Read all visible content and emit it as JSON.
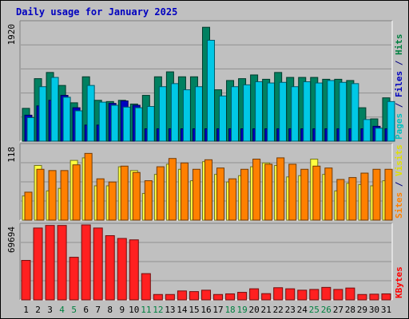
{
  "title": "Daily usage for January 2025",
  "chart_data": [
    {
      "type": "bar",
      "panel": "hits-files-pages",
      "ymax_label": "1920",
      "ymax": 1920,
      "side_label": [
        {
          "text": "Pages",
          "color": "#00c0c0"
        },
        {
          "text": " / ",
          "color": "#000080"
        },
        {
          "text": "Files",
          "color": "#0000c0"
        },
        {
          "text": " / ",
          "color": "#000080"
        },
        {
          "text": "Hits",
          "color": "#008040"
        }
      ],
      "categories": [
        "1",
        "2",
        "3",
        "4",
        "5",
        "6",
        "7",
        "8",
        "9",
        "10",
        "11",
        "12",
        "13",
        "14",
        "15",
        "16",
        "17",
        "18",
        "19",
        "20",
        "21",
        "22",
        "23",
        "24",
        "25",
        "26",
        "27",
        "28",
        "29",
        "30",
        "31"
      ],
      "weekend_days": [
        4,
        5,
        11,
        12,
        18,
        19,
        25,
        26
      ],
      "series": [
        {
          "name": "Hits",
          "color": "#008060",
          "values": [
            530,
            1010,
            1110,
            900,
            620,
            1040,
            660,
            640,
            660,
            600,
            740,
            1040,
            1120,
            1040,
            1040,
            1840,
            830,
            980,
            1010,
            1070,
            1000,
            1110,
            1030,
            1030,
            1030,
            1000,
            1000,
            980,
            540,
            360,
            700
          ]
        },
        {
          "name": "Files",
          "color": "#0000c0",
          "values": [
            420,
            570,
            660,
            740,
            540,
            260,
            260,
            610,
            650,
            580,
            200,
            200,
            200,
            200,
            200,
            200,
            200,
            200,
            200,
            200,
            200,
            200,
            200,
            200,
            200,
            200,
            200,
            200,
            200,
            240,
            200
          ]
        },
        {
          "name": "Pages",
          "color": "#00c8e6",
          "values": [
            380,
            880,
            1030,
            710,
            490,
            900,
            630,
            580,
            550,
            540,
            560,
            880,
            930,
            830,
            880,
            1630,
            730,
            880,
            910,
            960,
            940,
            950,
            880,
            960,
            940,
            980,
            950,
            930,
            350,
            210,
            640
          ]
        }
      ]
    },
    {
      "type": "bar",
      "panel": "visits-sites",
      "ymax_label": "118",
      "ymax": 118,
      "side_label": [
        {
          "text": "Sites",
          "color": "#ff8000"
        },
        {
          "text": " / ",
          "color": "#000080"
        },
        {
          "text": "Visits",
          "color": "#e0e000"
        }
      ],
      "series": [
        {
          "name": "Visits",
          "color": "#ffff40",
          "values": [
            38,
            86,
            46,
            50,
            94,
            98,
            54,
            54,
            84,
            78,
            42,
            72,
            88,
            80,
            62,
            92,
            72,
            60,
            70,
            84,
            90,
            86,
            68,
            70,
            96,
            72,
            46,
            58,
            56,
            54,
            62
          ]
        },
        {
          "name": "Sites",
          "color": "#ff8000",
          "values": [
            44,
            80,
            78,
            78,
            87,
            105,
            65,
            60,
            85,
            75,
            62,
            84,
            97,
            90,
            80,
            95,
            82,
            65,
            80,
            96,
            88,
            98,
            88,
            80,
            85,
            82,
            64,
            67,
            74,
            80,
            80
          ]
        }
      ]
    },
    {
      "type": "bar",
      "panel": "kbytes",
      "ymax_label": "69694",
      "ymax": 69694,
      "side_label": [
        {
          "text": "KBytes",
          "color": "#ff0000"
        }
      ],
      "series": [
        {
          "name": "KBytes",
          "color": "#ff2020",
          "values": [
            36700,
            66800,
            69200,
            69200,
            39600,
            69694,
            66800,
            59700,
            57100,
            55800,
            24400,
            5000,
            5000,
            8300,
            7700,
            9000,
            5000,
            5600,
            7000,
            10300,
            5800,
            11300,
            10300,
            9000,
            9700,
            11600,
            9700,
            11000,
            5000,
            5300,
            5600
          ]
        }
      ]
    }
  ]
}
